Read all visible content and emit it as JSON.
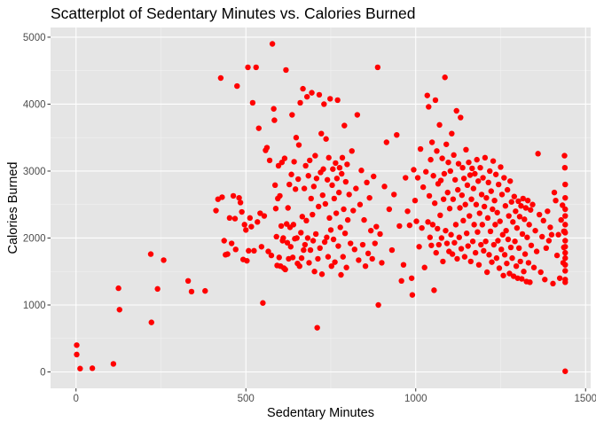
{
  "chart_data": {
    "type": "scatter",
    "title": "Scatterplot of Sedentary Minutes vs. Calories Burned",
    "xlabel": "Sedentary Minutes",
    "ylabel": "Calories Burned",
    "xlim": [
      -75,
      1515
    ],
    "ylim": [
      -245,
      5145
    ],
    "x_ticks": [
      0,
      500,
      1000,
      1500
    ],
    "x_tick_labels": [
      "0",
      "500",
      "1000",
      "1500"
    ],
    "y_ticks": [
      0,
      1000,
      2000,
      3000,
      4000,
      5000
    ],
    "y_tick_labels": [
      "0",
      "1000",
      "2000",
      "3000",
      "4000",
      "5000"
    ],
    "grid": true,
    "legend": "none",
    "colors": {
      "point": "#ff0000",
      "panel": "#e5e5e5",
      "grid_major": "#ffffff",
      "grid_minor": "#f2f2f2",
      "axis_text": "#4d4d4d",
      "title_text": "#000000"
    },
    "points": [
      [
        2,
        400
      ],
      [
        2,
        260
      ],
      [
        12,
        50
      ],
      [
        48,
        55
      ],
      [
        110,
        120
      ],
      [
        125,
        1250
      ],
      [
        128,
        930
      ],
      [
        220,
        1760
      ],
      [
        222,
        740
      ],
      [
        240,
        1240
      ],
      [
        258,
        1670
      ],
      [
        330,
        1360
      ],
      [
        340,
        1200
      ],
      [
        380,
        1210
      ],
      [
        412,
        2410
      ],
      [
        418,
        2580
      ],
      [
        426,
        4390
      ],
      [
        430,
        2610
      ],
      [
        436,
        1960
      ],
      [
        440,
        1750
      ],
      [
        446,
        1760
      ],
      [
        452,
        2300
      ],
      [
        458,
        1920
      ],
      [
        463,
        2630
      ],
      [
        468,
        2290
      ],
      [
        470,
        1830
      ],
      [
        474,
        4270
      ],
      [
        480,
        2600
      ],
      [
        484,
        2530
      ],
      [
        488,
        2390
      ],
      [
        492,
        1680
      ],
      [
        496,
        2200
      ],
      [
        500,
        2120
      ],
      [
        503,
        1660
      ],
      [
        506,
        4550
      ],
      [
        508,
        1810
      ],
      [
        512,
        2300
      ],
      [
        516,
        2170
      ],
      [
        520,
        4020
      ],
      [
        524,
        1810
      ],
      [
        530,
        4550
      ],
      [
        534,
        2240
      ],
      [
        538,
        3640
      ],
      [
        542,
        2370
      ],
      [
        546,
        1870
      ],
      [
        550,
        1030
      ],
      [
        554,
        2330
      ],
      [
        558,
        3310
      ],
      [
        562,
        3350
      ],
      [
        566,
        1800
      ],
      [
        570,
        3160
      ],
      [
        575,
        1740
      ],
      [
        578,
        4900
      ],
      [
        582,
        3930
      ],
      [
        584,
        3760
      ],
      [
        586,
        2790
      ],
      [
        588,
        2440
      ],
      [
        590,
        2020
      ],
      [
        592,
        1590
      ],
      [
        594,
        2590
      ],
      [
        596,
        3080
      ],
      [
        598,
        1710
      ],
      [
        600,
        2630
      ],
      [
        602,
        1580
      ],
      [
        604,
        2180
      ],
      [
        606,
        3130
      ],
      [
        608,
        1960
      ],
      [
        610,
        2000
      ],
      [
        612,
        1550
      ],
      [
        614,
        3190
      ],
      [
        616,
        1530
      ],
      [
        618,
        4510
      ],
      [
        620,
        2210
      ],
      [
        622,
        1930
      ],
      [
        624,
        2450
      ],
      [
        626,
        1690
      ],
      [
        628,
        2800
      ],
      [
        630,
        2160
      ],
      [
        632,
        1870
      ],
      [
        634,
        2950
      ],
      [
        636,
        3840
      ],
      [
        638,
        1710
      ],
      [
        640,
        2200
      ],
      [
        642,
        3140
      ],
      [
        644,
        1990
      ],
      [
        646,
        2730
      ],
      [
        648,
        3500
      ],
      [
        650,
        2000
      ],
      [
        652,
        1620
      ],
      [
        654,
        2880
      ],
      [
        656,
        3390
      ],
      [
        658,
        1580
      ],
      [
        660,
        4020
      ],
      [
        662,
        2080
      ],
      [
        664,
        1700
      ],
      [
        666,
        2320
      ],
      [
        668,
        4230
      ],
      [
        670,
        1820
      ],
      [
        672,
        2740
      ],
      [
        674,
        1900
      ],
      [
        676,
        3080
      ],
      [
        678,
        2260
      ],
      [
        680,
        4110
      ],
      [
        682,
        2000
      ],
      [
        684,
        2930
      ],
      [
        686,
        1630
      ],
      [
        688,
        3160
      ],
      [
        690,
        1820
      ],
      [
        692,
        2590
      ],
      [
        694,
        4170
      ],
      [
        696,
        2350
      ],
      [
        698,
        1960
      ],
      [
        700,
        2770
      ],
      [
        702,
        1500
      ],
      [
        704,
        3230
      ],
      [
        706,
        2060
      ],
      [
        708,
        2890
      ],
      [
        710,
        660
      ],
      [
        712,
        1690
      ],
      [
        714,
        2470
      ],
      [
        716,
        4140
      ],
      [
        718,
        1850
      ],
      [
        720,
        2980
      ],
      [
        722,
        3560
      ],
      [
        724,
        1460
      ],
      [
        726,
        2640
      ],
      [
        728,
        3030
      ],
      [
        730,
        4000
      ],
      [
        732,
        1940
      ],
      [
        734,
        2510
      ],
      [
        736,
        3480
      ],
      [
        738,
        2010
      ],
      [
        740,
        2870
      ],
      [
        742,
        1720
      ],
      [
        744,
        3200
      ],
      [
        746,
        2300
      ],
      [
        748,
        4080
      ],
      [
        750,
        2120
      ],
      [
        752,
        1580
      ],
      [
        754,
        2790
      ],
      [
        756,
        3030
      ],
      [
        758,
        1980
      ],
      [
        760,
        2590
      ],
      [
        762,
        1640
      ],
      [
        764,
        3120
      ],
      [
        766,
        2370
      ],
      [
        768,
        2890
      ],
      [
        770,
        4060
      ],
      [
        772,
        1880
      ],
      [
        774,
        2680
      ],
      [
        776,
        3050
      ],
      [
        778,
        2160
      ],
      [
        780,
        1450
      ],
      [
        782,
        2960
      ],
      [
        784,
        3200
      ],
      [
        786,
        1720
      ],
      [
        788,
        2430
      ],
      [
        790,
        3680
      ],
      [
        792,
        2070
      ],
      [
        794,
        2840
      ],
      [
        796,
        1560
      ],
      [
        798,
        3100
      ],
      [
        800,
        2270
      ],
      [
        804,
        2650
      ],
      [
        808,
        1920
      ],
      [
        812,
        3300
      ],
      [
        816,
        2410
      ],
      [
        820,
        1830
      ],
      [
        824,
        2740
      ],
      [
        828,
        3840
      ],
      [
        832,
        1670
      ],
      [
        836,
        2500
      ],
      [
        840,
        3010
      ],
      [
        844,
        1900
      ],
      [
        848,
        2270
      ],
      [
        852,
        1580
      ],
      [
        856,
        2830
      ],
      [
        860,
        1770
      ],
      [
        864,
        2600
      ],
      [
        868,
        2110
      ],
      [
        872,
        1690
      ],
      [
        876,
        2920
      ],
      [
        880,
        1920
      ],
      [
        884,
        2170
      ],
      [
        888,
        4550
      ],
      [
        890,
        1000
      ],
      [
        895,
        2060
      ],
      [
        900,
        1630
      ],
      [
        908,
        2770
      ],
      [
        914,
        3430
      ],
      [
        922,
        2430
      ],
      [
        930,
        1820
      ],
      [
        936,
        2650
      ],
      [
        944,
        3540
      ],
      [
        952,
        2180
      ],
      [
        958,
        1360
      ],
      [
        964,
        1600
      ],
      [
        970,
        2900
      ],
      [
        976,
        2400
      ],
      [
        982,
        2190
      ],
      [
        988,
        1400
      ],
      [
        990,
        1150
      ],
      [
        994,
        3020
      ],
      [
        998,
        2560
      ],
      [
        1002,
        2250
      ],
      [
        1006,
        2900
      ],
      [
        1010,
        1870
      ],
      [
        1014,
        3330
      ],
      [
        1018,
        2150
      ],
      [
        1022,
        2760
      ],
      [
        1026,
        1560
      ],
      [
        1030,
        2990
      ],
      [
        1034,
        4130
      ],
      [
        1036,
        2240
      ],
      [
        1038,
        3960
      ],
      [
        1040,
        2630
      ],
      [
        1042,
        2010
      ],
      [
        1044,
        3170
      ],
      [
        1046,
        1890
      ],
      [
        1048,
        3430
      ],
      [
        1050,
        2200
      ],
      [
        1052,
        2930
      ],
      [
        1054,
        1220
      ],
      [
        1056,
        2520
      ],
      [
        1058,
        4060
      ],
      [
        1060,
        1780
      ],
      [
        1062,
        3300
      ],
      [
        1064,
        2140
      ],
      [
        1066,
        2810
      ],
      [
        1068,
        1900
      ],
      [
        1070,
        3690
      ],
      [
        1072,
        2340
      ],
      [
        1074,
        2860
      ],
      [
        1076,
        2000
      ],
      [
        1078,
        3190
      ],
      [
        1080,
        1650
      ],
      [
        1082,
        2580
      ],
      [
        1084,
        2960
      ],
      [
        1086,
        4400
      ],
      [
        1088,
        2110
      ],
      [
        1090,
        3400
      ],
      [
        1092,
        1920
      ],
      [
        1094,
        2680
      ],
      [
        1096,
        3130
      ],
      [
        1098,
        1800
      ],
      [
        1100,
        2440
      ],
      [
        1102,
        3000
      ],
      [
        1104,
        2050
      ],
      [
        1106,
        3560
      ],
      [
        1108,
        1760
      ],
      [
        1110,
        2580
      ],
      [
        1112,
        3240
      ],
      [
        1114,
        1930
      ],
      [
        1116,
        2870
      ],
      [
        1118,
        2200
      ],
      [
        1120,
        3900
      ],
      [
        1122,
        1690
      ],
      [
        1124,
        2720
      ],
      [
        1126,
        3110
      ],
      [
        1128,
        2010
      ],
      [
        1130,
        2450
      ],
      [
        1132,
        3800
      ],
      [
        1134,
        1840
      ],
      [
        1136,
        2640
      ],
      [
        1138,
        3050
      ],
      [
        1140,
        2260
      ],
      [
        1142,
        2890
      ],
      [
        1144,
        1720
      ],
      [
        1146,
        2500
      ],
      [
        1148,
        3320
      ],
      [
        1150,
        2070
      ],
      [
        1152,
        2790
      ],
      [
        1154,
        1880
      ],
      [
        1156,
        3130
      ],
      [
        1158,
        2330
      ],
      [
        1160,
        2940
      ],
      [
        1162,
        1650
      ],
      [
        1164,
        2580
      ],
      [
        1166,
        3040
      ],
      [
        1168,
        1950
      ],
      [
        1170,
        2740
      ],
      [
        1172,
        2200
      ],
      [
        1174,
        2960
      ],
      [
        1176,
        1780
      ],
      [
        1178,
        2500
      ],
      [
        1180,
        3170
      ],
      [
        1182,
        2090
      ],
      [
        1184,
        2850
      ],
      [
        1186,
        1600
      ],
      [
        1188,
        2370
      ],
      [
        1190,
        3050
      ],
      [
        1192,
        1900
      ],
      [
        1194,
        2650
      ],
      [
        1196,
        2200
      ],
      [
        1198,
        2900
      ],
      [
        1200,
        1810
      ],
      [
        1202,
        2470
      ],
      [
        1204,
        3200
      ],
      [
        1206,
        1950
      ],
      [
        1208,
        2600
      ],
      [
        1210,
        1490
      ],
      [
        1212,
        2300
      ],
      [
        1214,
        2830
      ],
      [
        1216,
        1750
      ],
      [
        1218,
        3000
      ],
      [
        1220,
        2100
      ],
      [
        1222,
        2700
      ],
      [
        1224,
        1640
      ],
      [
        1226,
        2430
      ],
      [
        1228,
        3150
      ],
      [
        1230,
        1900
      ],
      [
        1232,
        2560
      ],
      [
        1234,
        2200
      ],
      [
        1236,
        2950
      ],
      [
        1238,
        1700
      ],
      [
        1240,
        2380
      ],
      [
        1242,
        1960
      ],
      [
        1244,
        2800
      ],
      [
        1246,
        1550
      ],
      [
        1248,
        2250
      ],
      [
        1250,
        3060
      ],
      [
        1252,
        1830
      ],
      [
        1254,
        2650
      ],
      [
        1256,
        2050
      ],
      [
        1258,
        1440
      ],
      [
        1260,
        2900
      ],
      [
        1262,
        1750
      ],
      [
        1264,
        2480
      ],
      [
        1266,
        2110
      ],
      [
        1268,
        1620
      ],
      [
        1270,
        2720
      ],
      [
        1272,
        1980
      ],
      [
        1274,
        2330
      ],
      [
        1276,
        1470
      ],
      [
        1278,
        2850
      ],
      [
        1280,
        1860
      ],
      [
        1282,
        2540
      ],
      [
        1284,
        1700
      ],
      [
        1286,
        2240
      ],
      [
        1288,
        1430
      ],
      [
        1290,
        2620
      ],
      [
        1292,
        1950
      ],
      [
        1294,
        2400
      ],
      [
        1296,
        1580
      ],
      [
        1298,
        2150
      ],
      [
        1300,
        1400
      ],
      [
        1302,
        2550
      ],
      [
        1304,
        1850
      ],
      [
        1306,
        2320
      ],
      [
        1308,
        1650
      ],
      [
        1310,
        2480
      ],
      [
        1312,
        1390
      ],
      [
        1314,
        2060
      ],
      [
        1316,
        2590
      ],
      [
        1318,
        1500
      ],
      [
        1320,
        2280
      ],
      [
        1322,
        1760
      ],
      [
        1324,
        2450
      ],
      [
        1326,
        1350
      ],
      [
        1328,
        2010
      ],
      [
        1330,
        2560
      ],
      [
        1332,
        1630
      ],
      [
        1334,
        2200
      ],
      [
        1336,
        1340
      ],
      [
        1338,
        2420
      ],
      [
        1340,
        1890
      ],
      [
        1344,
        2500
      ],
      [
        1348,
        1560
      ],
      [
        1352,
        2110
      ],
      [
        1356,
        1800
      ],
      [
        1360,
        3260
      ],
      [
        1364,
        2350
      ],
      [
        1368,
        1490
      ],
      [
        1372,
        2020
      ],
      [
        1376,
        2260
      ],
      [
        1380,
        1380
      ],
      [
        1384,
        1850
      ],
      [
        1388,
        2400
      ],
      [
        1392,
        1960
      ],
      [
        1396,
        2160
      ],
      [
        1400,
        2050
      ],
      [
        1404,
        1320
      ],
      [
        1408,
        2680
      ],
      [
        1412,
        2560
      ],
      [
        1416,
        1740
      ],
      [
        1420,
        2050
      ],
      [
        1424,
        1400
      ],
      [
        1428,
        2270
      ],
      [
        1432,
        2490
      ],
      [
        1436,
        2100
      ],
      [
        1438,
        3230
      ],
      [
        1439,
        3050
      ],
      [
        1440,
        2800
      ],
      [
        1440,
        2600
      ],
      [
        1440,
        2430
      ],
      [
        1440,
        2330
      ],
      [
        1440,
        2200
      ],
      [
        1440,
        2080
      ],
      [
        1440,
        1960
      ],
      [
        1440,
        1870
      ],
      [
        1440,
        1780
      ],
      [
        1440,
        1700
      ],
      [
        1440,
        1600
      ],
      [
        1440,
        1510
      ],
      [
        1440,
        1380
      ],
      [
        1440,
        1340
      ],
      [
        1440,
        10
      ],
      [
        1438,
        2100
      ],
      [
        1436,
        1860
      ],
      [
        1434,
        1630
      ]
    ]
  }
}
